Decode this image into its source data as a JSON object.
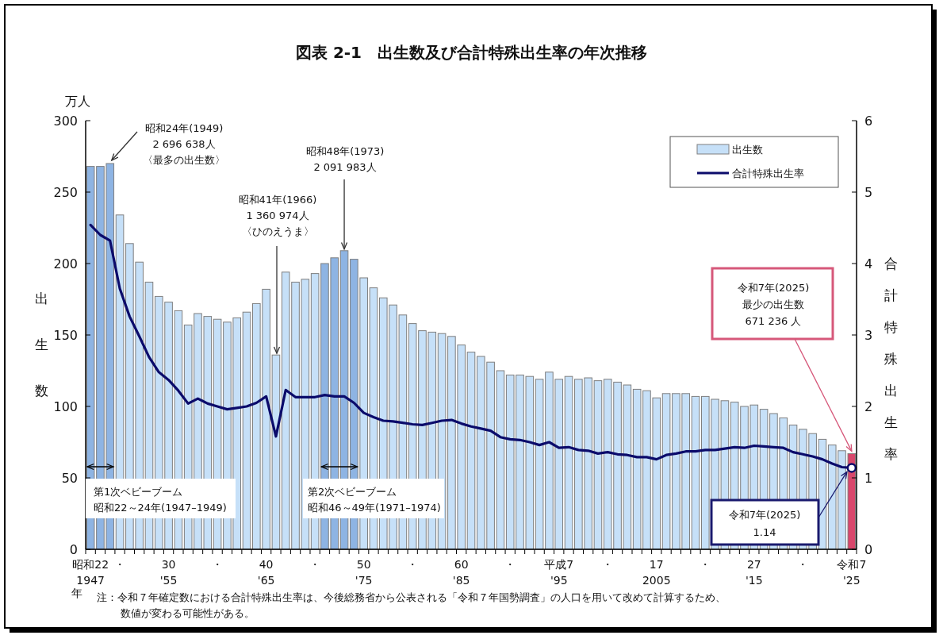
{
  "chart_data": {
    "type": "bar",
    "title": "図表 2-1　出生数及び合計特殊出生率の年次推移",
    "ylabel": "出生数",
    "y2label": "合計特殊出生率",
    "categories": [
      "昭和22\n1947",
      null,
      null,
      "・",
      null,
      null,
      null,
      null,
      "30\n'55",
      null,
      null,
      null,
      null,
      "・",
      null,
      null,
      null,
      null,
      "40\n'65",
      null,
      null,
      null,
      null,
      "・",
      null,
      null,
      null,
      null,
      "50\n'75",
      null,
      null,
      null,
      null,
      "・",
      null,
      null,
      null,
      null,
      "60\n'85",
      null,
      null,
      null,
      null,
      "・",
      null,
      null,
      null,
      null,
      "平成7\n'95",
      null,
      null,
      null,
      null,
      "・",
      null,
      null,
      null,
      null,
      "17\n2005",
      null,
      null,
      null,
      null,
      "・",
      null,
      null,
      null,
      null,
      "27\n'15",
      null,
      null,
      null,
      null,
      "・",
      null,
      null,
      null,
      null,
      "令和7\n'25"
    ],
    "series": [
      {
        "name": "出生数",
        "colors": [
          "#8eb4e3",
          "#8eb4e3",
          "#8eb4e3",
          "#c6e0f8",
          "#c6e0f8",
          "#c6e0f8",
          "#c6e0f8",
          "#c6e0f8",
          "#c6e0f8",
          "#c6e0f8",
          "#c6e0f8",
          "#c6e0f8",
          "#c6e0f8",
          "#c6e0f8",
          "#c6e0f8",
          "#c6e0f8",
          "#c6e0f8",
          "#c6e0f8",
          "#c6e0f8",
          "#c6e0f8",
          "#c6e0f8",
          "#c6e0f8",
          "#c6e0f8",
          "#c6e0f8",
          "#8eb4e3",
          "#8eb4e3",
          "#8eb4e3",
          "#8eb4e3",
          "#c6e0f8",
          "#c6e0f8",
          "#c6e0f8",
          "#c6e0f8",
          "#c6e0f8",
          "#c6e0f8",
          "#c6e0f8",
          "#c6e0f8",
          "#c6e0f8",
          "#c6e0f8",
          "#c6e0f8",
          "#c6e0f8",
          "#c6e0f8",
          "#c6e0f8",
          "#c6e0f8",
          "#c6e0f8",
          "#c6e0f8",
          "#c6e0f8",
          "#c6e0f8",
          "#c6e0f8",
          "#c6e0f8",
          "#c6e0f8",
          "#c6e0f8",
          "#c6e0f8",
          "#c6e0f8",
          "#c6e0f8",
          "#c6e0f8",
          "#c6e0f8",
          "#c6e0f8",
          "#c6e0f8",
          "#c6e0f8",
          "#c6e0f8",
          "#c6e0f8",
          "#c6e0f8",
          "#c6e0f8",
          "#c6e0f8",
          "#c6e0f8",
          "#c6e0f8",
          "#c6e0f8",
          "#c6e0f8",
          "#c6e0f8",
          "#c6e0f8",
          "#c6e0f8",
          "#c6e0f8",
          "#c6e0f8",
          "#c6e0f8",
          "#c6e0f8",
          "#c6e0f8",
          "#c6e0f8",
          "#c6e0f8",
          "#d9476c"
        ],
        "values": [
          268,
          268,
          270,
          234,
          214,
          201,
          187,
          177,
          173,
          167,
          157,
          165,
          163,
          161,
          159,
          162,
          166,
          172,
          182,
          136,
          194,
          187,
          189,
          193,
          200,
          204,
          209,
          203,
          190,
          183,
          176,
          171,
          164,
          158,
          153,
          152,
          151,
          149,
          143,
          138,
          135,
          131,
          125,
          122,
          122,
          121,
          119,
          124,
          119,
          121,
          119,
          120,
          118,
          119,
          117,
          115,
          112,
          111,
          106,
          109,
          109,
          109,
          107,
          107,
          105,
          104,
          103,
          100,
          101,
          98,
          95,
          92,
          87,
          84,
          81,
          77,
          73,
          69,
          67
        ]
      },
      {
        "name": "合計特殊出生率",
        "type": "line",
        "axis": "y2",
        "color": "#0b0b6b",
        "marker": "none",
        "line_style": "solid",
        "values": [
          4.54,
          4.4,
          4.32,
          3.65,
          3.26,
          2.98,
          2.69,
          2.48,
          2.37,
          2.22,
          2.04,
          2.11,
          2.04,
          2.0,
          1.96,
          1.98,
          2.0,
          2.05,
          2.14,
          1.58,
          2.23,
          2.13,
          2.13,
          2.13,
          2.16,
          2.14,
          2.14,
          2.05,
          1.91,
          1.85,
          1.8,
          1.79,
          1.77,
          1.75,
          1.74,
          1.77,
          1.8,
          1.81,
          1.76,
          1.72,
          1.69,
          1.66,
          1.57,
          1.54,
          1.53,
          1.5,
          1.46,
          1.5,
          1.42,
          1.43,
          1.39,
          1.38,
          1.34,
          1.36,
          1.33,
          1.32,
          1.29,
          1.29,
          1.26,
          1.32,
          1.34,
          1.37,
          1.37,
          1.39,
          1.39,
          1.41,
          1.43,
          1.42,
          1.45,
          1.44,
          1.43,
          1.42,
          1.36,
          1.33,
          1.3,
          1.26,
          1.2,
          1.15,
          1.14
        ]
      },
      {
        "type": "scatter",
        "axis": "y2",
        "color": "#0b0b6b",
        "marker": "circle",
        "values": [
          null,
          null,
          null,
          null,
          null,
          null,
          null,
          null,
          null,
          null,
          null,
          null,
          null,
          null,
          null,
          null,
          null,
          null,
          null,
          null,
          null,
          null,
          null,
          null,
          null,
          null,
          null,
          null,
          null,
          null,
          null,
          null,
          null,
          null,
          null,
          null,
          null,
          null,
          null,
          null,
          null,
          null,
          null,
          null,
          null,
          null,
          null,
          null,
          null,
          null,
          null,
          null,
          null,
          null,
          null,
          null,
          null,
          null,
          null,
          null,
          null,
          null,
          null,
          null,
          null,
          null,
          null,
          null,
          null,
          null,
          null,
          null,
          null,
          null,
          null,
          null,
          null,
          null,
          1.14
        ]
      }
    ],
    "ylim": [
      0,
      300
    ],
    "yticks": [
      0,
      50,
      100,
      150,
      200,
      250,
      300
    ],
    "y2lim": [
      0,
      6
    ],
    "y2ticks": [
      0,
      1,
      2,
      3,
      4,
      5,
      6
    ],
    "legend": "top right",
    "annotations": [
      "万人",
      "年",
      "昭和24年(1949)\n2 696 638人",
      "〈最多の出生数〉",
      "昭和41年(1966)\n1 360 974人",
      {
        "text": "〈ひのえうま〉",
        "y": 136
      },
      {
        "text": "昭和48年(1973)\n2 091 983人",
        "y": 209
      },
      {
        "text": "令和7年(2025)\n最少の出生数\n671 236 人",
        "x": "令和7\n'25",
        "y": 67
      },
      "令和7年(2025)\n1.14",
      "第1次ベビーブーム",
      "昭和22～24年(1947–1949)",
      "第2次ベビーブーム",
      "昭和46～49年(1971–1974)",
      "注：令和７年確定数における合計特殊出生率は、今後総務省から公表される「令和７年国勢調査」の人口を用いて改めて計算するため、",
      "数値が変わる可能性がある。"
    ]
  }
}
